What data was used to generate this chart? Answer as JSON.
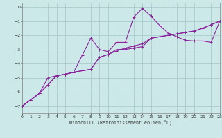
{
  "xlabel": "Windchill (Refroidissement éolien,°C)",
  "background_color": "#cce8e8",
  "grid_color": "#aacccc",
  "line_color": "#882299",
  "xlim": [
    0,
    23
  ],
  "ylim": [
    -7.5,
    0.3
  ],
  "xticks": [
    0,
    1,
    2,
    3,
    4,
    5,
    6,
    7,
    8,
    9,
    10,
    11,
    12,
    13,
    14,
    15,
    16,
    17,
    18,
    19,
    20,
    21,
    22,
    23
  ],
  "yticks": [
    0,
    -1,
    -2,
    -3,
    -4,
    -5,
    -6,
    -7
  ],
  "line1_x": [
    0,
    1,
    2,
    3,
    4,
    5,
    6,
    7,
    8,
    9,
    10,
    11,
    12,
    13,
    14,
    15,
    16,
    17,
    18,
    19,
    20,
    21,
    22,
    23
  ],
  "line1_y": [
    -7.0,
    -6.55,
    -6.1,
    -5.0,
    -4.85,
    -4.75,
    -4.6,
    -3.4,
    -2.2,
    -3.0,
    -3.15,
    -2.5,
    -2.5,
    -0.7,
    -0.1,
    -0.65,
    -1.3,
    -1.85,
    -2.1,
    -2.35,
    -2.4,
    -2.4,
    -2.5,
    -1.0
  ],
  "line2_x": [
    0,
    1,
    2,
    3,
    4,
    5,
    6,
    7,
    8,
    9,
    10,
    11,
    12,
    13,
    14,
    15,
    16,
    17,
    18,
    19,
    20,
    21,
    22,
    23
  ],
  "line2_y": [
    -7.0,
    -6.55,
    -6.1,
    -5.5,
    -4.85,
    -4.75,
    -4.6,
    -4.5,
    -4.4,
    -3.55,
    -3.35,
    -3.0,
    -3.0,
    -2.9,
    -2.8,
    -2.2,
    -2.1,
    -2.0,
    -1.9,
    -1.8,
    -1.7,
    -1.5,
    -1.25,
    -1.0
  ],
  "line3_x": [
    0,
    1,
    2,
    3,
    4,
    5,
    6,
    7,
    8,
    9,
    10,
    11,
    12,
    13,
    14,
    15,
    16,
    17,
    18,
    19,
    20,
    21,
    22,
    23
  ],
  "line3_y": [
    -7.0,
    -6.55,
    -6.1,
    -5.5,
    -4.85,
    -4.75,
    -4.6,
    -4.5,
    -4.4,
    -3.55,
    -3.35,
    -3.1,
    -2.9,
    -2.75,
    -2.6,
    -2.2,
    -2.1,
    -2.0,
    -1.9,
    -1.8,
    -1.7,
    -1.5,
    -1.25,
    -1.0
  ]
}
